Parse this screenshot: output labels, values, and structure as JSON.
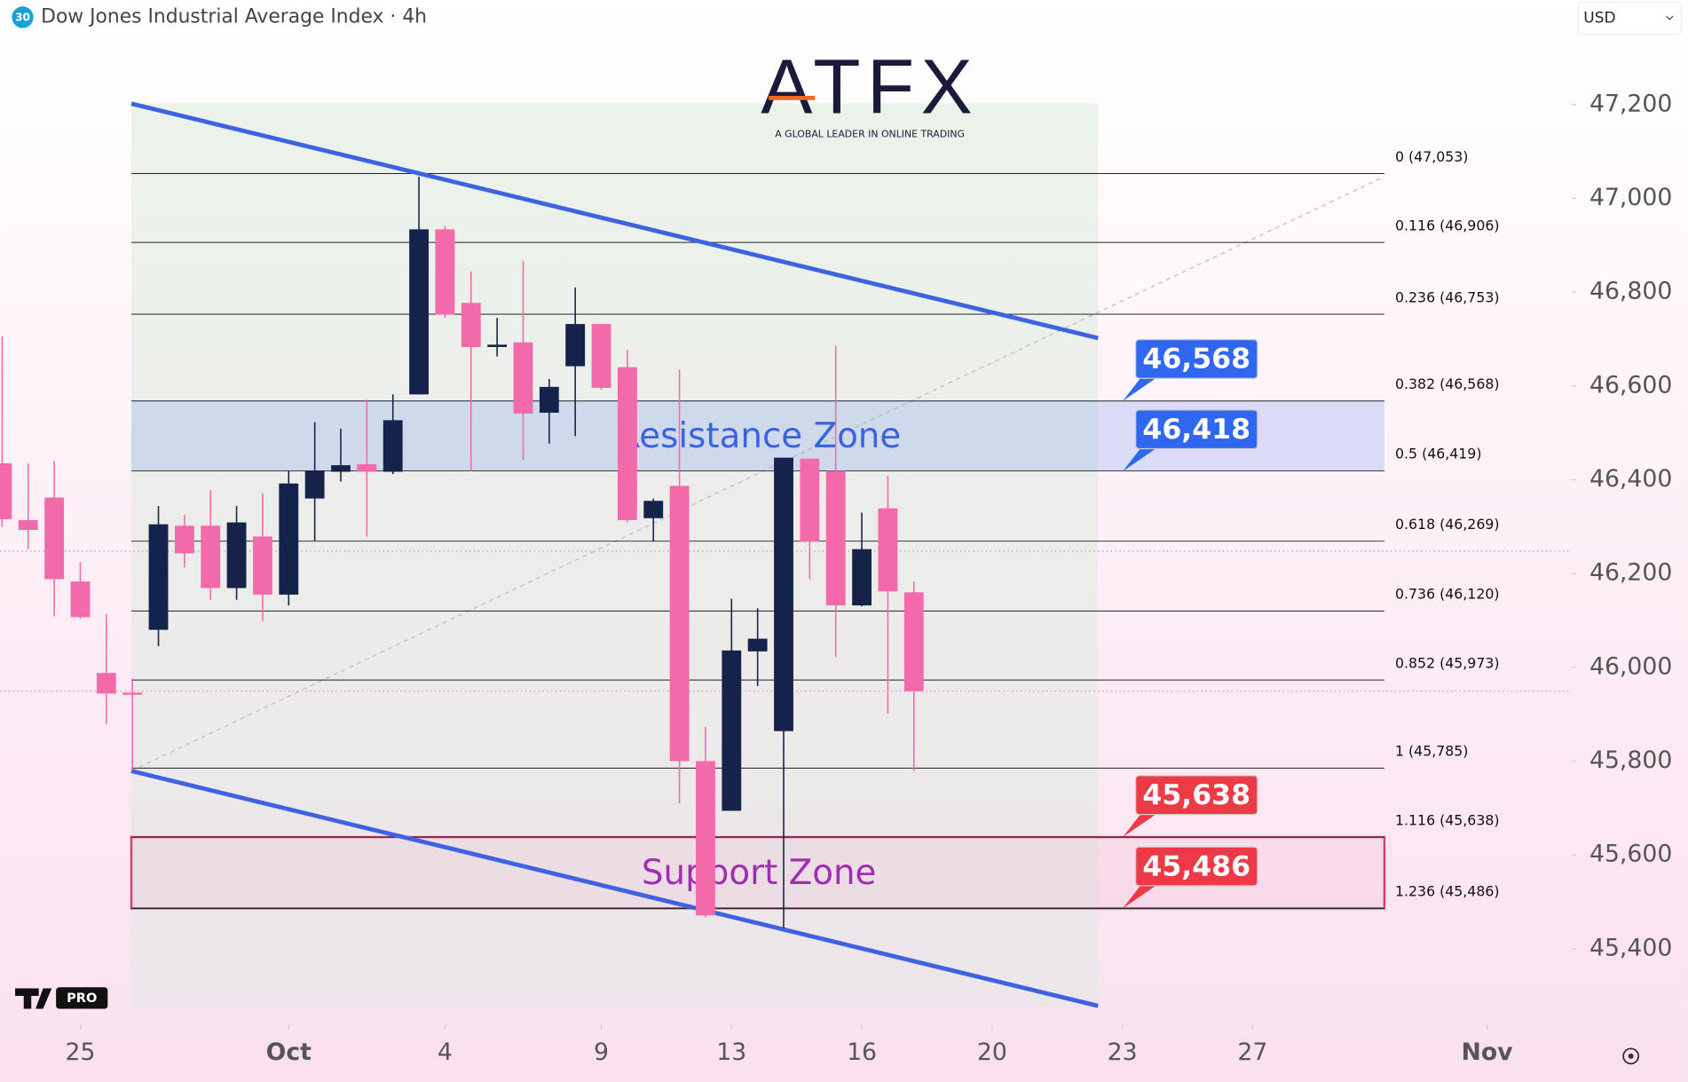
{
  "header": {
    "badge": "30",
    "title": "Dow Jones Industrial Average Index · 4h",
    "currency": "USD"
  },
  "logo": {
    "name": "ATFX",
    "tagline": "A GLOBAL LEADER IN ONLINE TRADING"
  },
  "badge_pro": "PRO",
  "chart_data": {
    "type": "candlestick",
    "x": [
      0,
      1,
      2,
      3,
      4,
      5,
      6,
      7,
      8,
      9,
      10,
      11,
      12,
      13,
      14,
      15,
      16,
      17,
      18,
      19,
      20,
      21,
      22,
      23,
      24,
      25,
      26,
      27,
      28,
      29,
      30,
      31,
      32,
      33,
      34,
      35
    ],
    "open": [
      46435,
      46314,
      46362,
      46183,
      45988,
      45946,
      46080,
      46302,
      46302,
      46169,
      46279,
      46155,
      46360,
      46417,
      46433,
      46417,
      46582,
      46934,
      46777,
      46683,
      46693,
      46543,
      46642,
      46732,
      46640,
      46318,
      46387,
      45800,
      45694,
      46034,
      45864,
      46445,
      46419,
      46132,
      46339,
      46160
    ],
    "high": [
      46706,
      46435,
      46440,
      46224,
      46114,
      45976,
      46344,
      46325,
      46378,
      46344,
      46371,
      46419,
      46523,
      46509,
      46571,
      46582,
      47046,
      46941,
      46844,
      46745,
      46867,
      46615,
      46810,
      46732,
      46677,
      46360,
      46635,
      45873,
      46146,
      46126,
      46447,
      46445,
      46686,
      46330,
      46408,
      46183
    ],
    "low": [
      46300,
      46252,
      46109,
      46103,
      45880,
      45781,
      46045,
      46213,
      46144,
      46144,
      46098,
      46132,
      46270,
      46396,
      46279,
      46412,
      46582,
      46745,
      46419,
      46663,
      46442,
      46477,
      46493,
      46592,
      46309,
      46268,
      45710,
      45467,
      45694,
      45960,
      45444,
      46188,
      46022,
      46130,
      45901,
      45779
    ],
    "close": [
      46316,
      46293,
      46188,
      46107,
      45944,
      45942,
      46305,
      46243,
      46169,
      46309,
      46155,
      46392,
      46419,
      46431,
      46417,
      46527,
      46934,
      46752,
      46683,
      46688,
      46541,
      46598,
      46732,
      46596,
      46314,
      46355,
      45800,
      45471,
      46036,
      46061,
      46447,
      46268,
      46132,
      46252,
      46162,
      45949
    ],
    "up_color": "#15234a",
    "down_color": "#f36aab",
    "xlim": [
      -0.08,
      60.25
    ],
    "xticks": [
      {
        "value": 3,
        "label": "25"
      },
      {
        "value": 11,
        "label": "Oct"
      },
      {
        "value": 17,
        "label": "4"
      },
      {
        "value": 23,
        "label": "9"
      },
      {
        "value": 28,
        "label": "13"
      },
      {
        "value": 33,
        "label": "16"
      },
      {
        "value": 38,
        "label": "20"
      },
      {
        "value": 43,
        "label": "23"
      },
      {
        "value": 48,
        "label": "27"
      },
      {
        "value": 57,
        "label": "Nov"
      }
    ],
    "ylim": [
      45242,
      47423
    ],
    "yticks": [
      {
        "value": 45400,
        "label": "45,400"
      },
      {
        "value": 45600,
        "label": "45,600"
      },
      {
        "value": 45800,
        "label": "45,800"
      },
      {
        "value": 46000,
        "label": "46,000"
      },
      {
        "value": 46200,
        "label": "46,200"
      },
      {
        "value": 46400,
        "label": "46,400"
      },
      {
        "value": 46600,
        "label": "46,600"
      },
      {
        "value": 46800,
        "label": "46,800"
      },
      {
        "value": 47000,
        "label": "47,000"
      },
      {
        "value": 47200,
        "label": "47,200"
      }
    ],
    "fib_x": [
      4.96,
      53.06
    ],
    "fib_levels": [
      {
        "price": 47053,
        "label": "0 (47,053)"
      },
      {
        "price": 46906,
        "label": "0.116 (46,906)"
      },
      {
        "price": 46753,
        "label": "0.236 (46,753)"
      },
      {
        "price": 46568,
        "label": "0.382 (46,568)"
      },
      {
        "price": 46419,
        "label": "0.5 (46,419)"
      },
      {
        "price": 46269,
        "label": "0.618 (46,269)"
      },
      {
        "price": 46120,
        "label": "0.736 (46,120)"
      },
      {
        "price": 45973,
        "label": "0.852 (45,973)"
      },
      {
        "price": 45785,
        "label": "1 (45,785)"
      },
      {
        "price": 45638,
        "label": "1.116 (45,638)"
      },
      {
        "price": 45486,
        "label": "1.236 (45,486)"
      }
    ],
    "zones": [
      {
        "name": "Resistance Zone",
        "low": 46419,
        "high": 46568,
        "color": "#3a63e0"
      },
      {
        "name": "Support Zone",
        "low": 45486,
        "high": 45638,
        "color": "#a22db5"
      }
    ],
    "channel": [
      {
        "x": [
          4.96,
          42.07
        ],
        "y": [
          47202,
          46702
        ]
      },
      {
        "x": [
          4.96,
          42.07
        ],
        "y": [
          45779,
          45278
        ]
      }
    ],
    "channel_color": "#3d63e3",
    "price_tags": [
      {
        "value": 46568,
        "label": "46,568",
        "color": "#2f67f0"
      },
      {
        "value": 46418,
        "label": "46,418",
        "color": "#2f67f0"
      },
      {
        "value": 45638,
        "label": "45,638",
        "color": "#ec3a46"
      },
      {
        "value": 45486,
        "label": "45,486",
        "color": "#ec3a46"
      }
    ]
  }
}
